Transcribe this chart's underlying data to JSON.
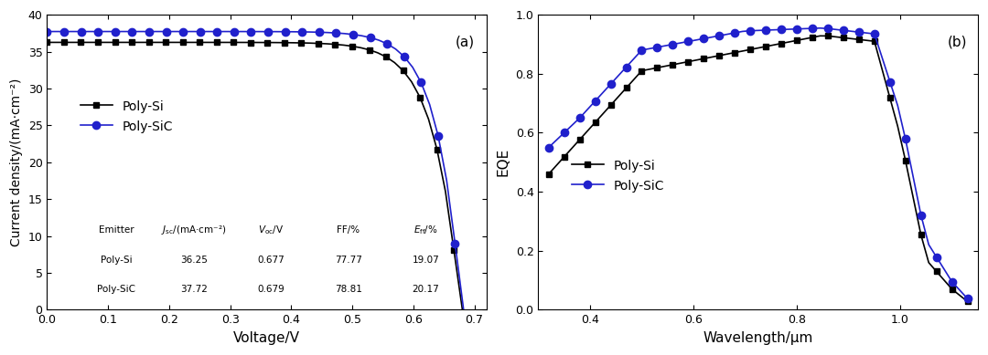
{
  "fig_width": 10.8,
  "fig_height": 3.89,
  "panel_a": {
    "label": "(a)",
    "xlabel": "Voltage/V",
    "ylabel": "Current density/(mA·cm⁻²)",
    "xlim": [
      0,
      0.72
    ],
    "ylim": [
      0,
      40
    ],
    "xticks": [
      0,
      0.1,
      0.2,
      0.3,
      0.4,
      0.5,
      0.6,
      0.7
    ],
    "yticks": [
      0,
      5,
      10,
      15,
      20,
      25,
      30,
      35,
      40
    ],
    "poly_si_jv": {
      "label": "Poly-Si",
      "color": "black",
      "marker": "s",
      "Jsc": 36.25,
      "Voc": 0.677,
      "FF": 77.77,
      "Eff": 19.07
    },
    "poly_sic_jv": {
      "label": "Poly-SiC",
      "color": "#2020CC",
      "marker": "o",
      "Jsc": 37.72,
      "Voc": 0.679,
      "FF": 78.81,
      "Eff": 20.17
    },
    "table": {
      "headers": [
        "Emitter",
        "J_sc/(mA·cm⁻²)",
        "V_oc/V",
        "FF/%",
        "E_ff/%"
      ],
      "rows": [
        [
          "Poly-Si",
          "36.25",
          "0.677",
          "77.77",
          "19.07"
        ],
        [
          "Poly-SiC",
          "37.72",
          "0.679",
          "78.81",
          "20.17"
        ]
      ]
    }
  },
  "panel_b": {
    "label": "(b)",
    "xlabel": "Wavelength/μm",
    "ylabel": "EQE",
    "xlim": [
      0.3,
      1.15
    ],
    "ylim": [
      0,
      1.0
    ],
    "xticks": [
      0.4,
      0.6,
      0.8,
      1.0
    ],
    "yticks": [
      0,
      0.2,
      0.4,
      0.6,
      0.8,
      1.0
    ],
    "poly_si_eqe": {
      "label": "Poly-Si",
      "color": "black",
      "marker": "s"
    },
    "poly_sic_eqe": {
      "label": "Poly-SiC",
      "color": "#2020CC",
      "marker": "o"
    }
  }
}
